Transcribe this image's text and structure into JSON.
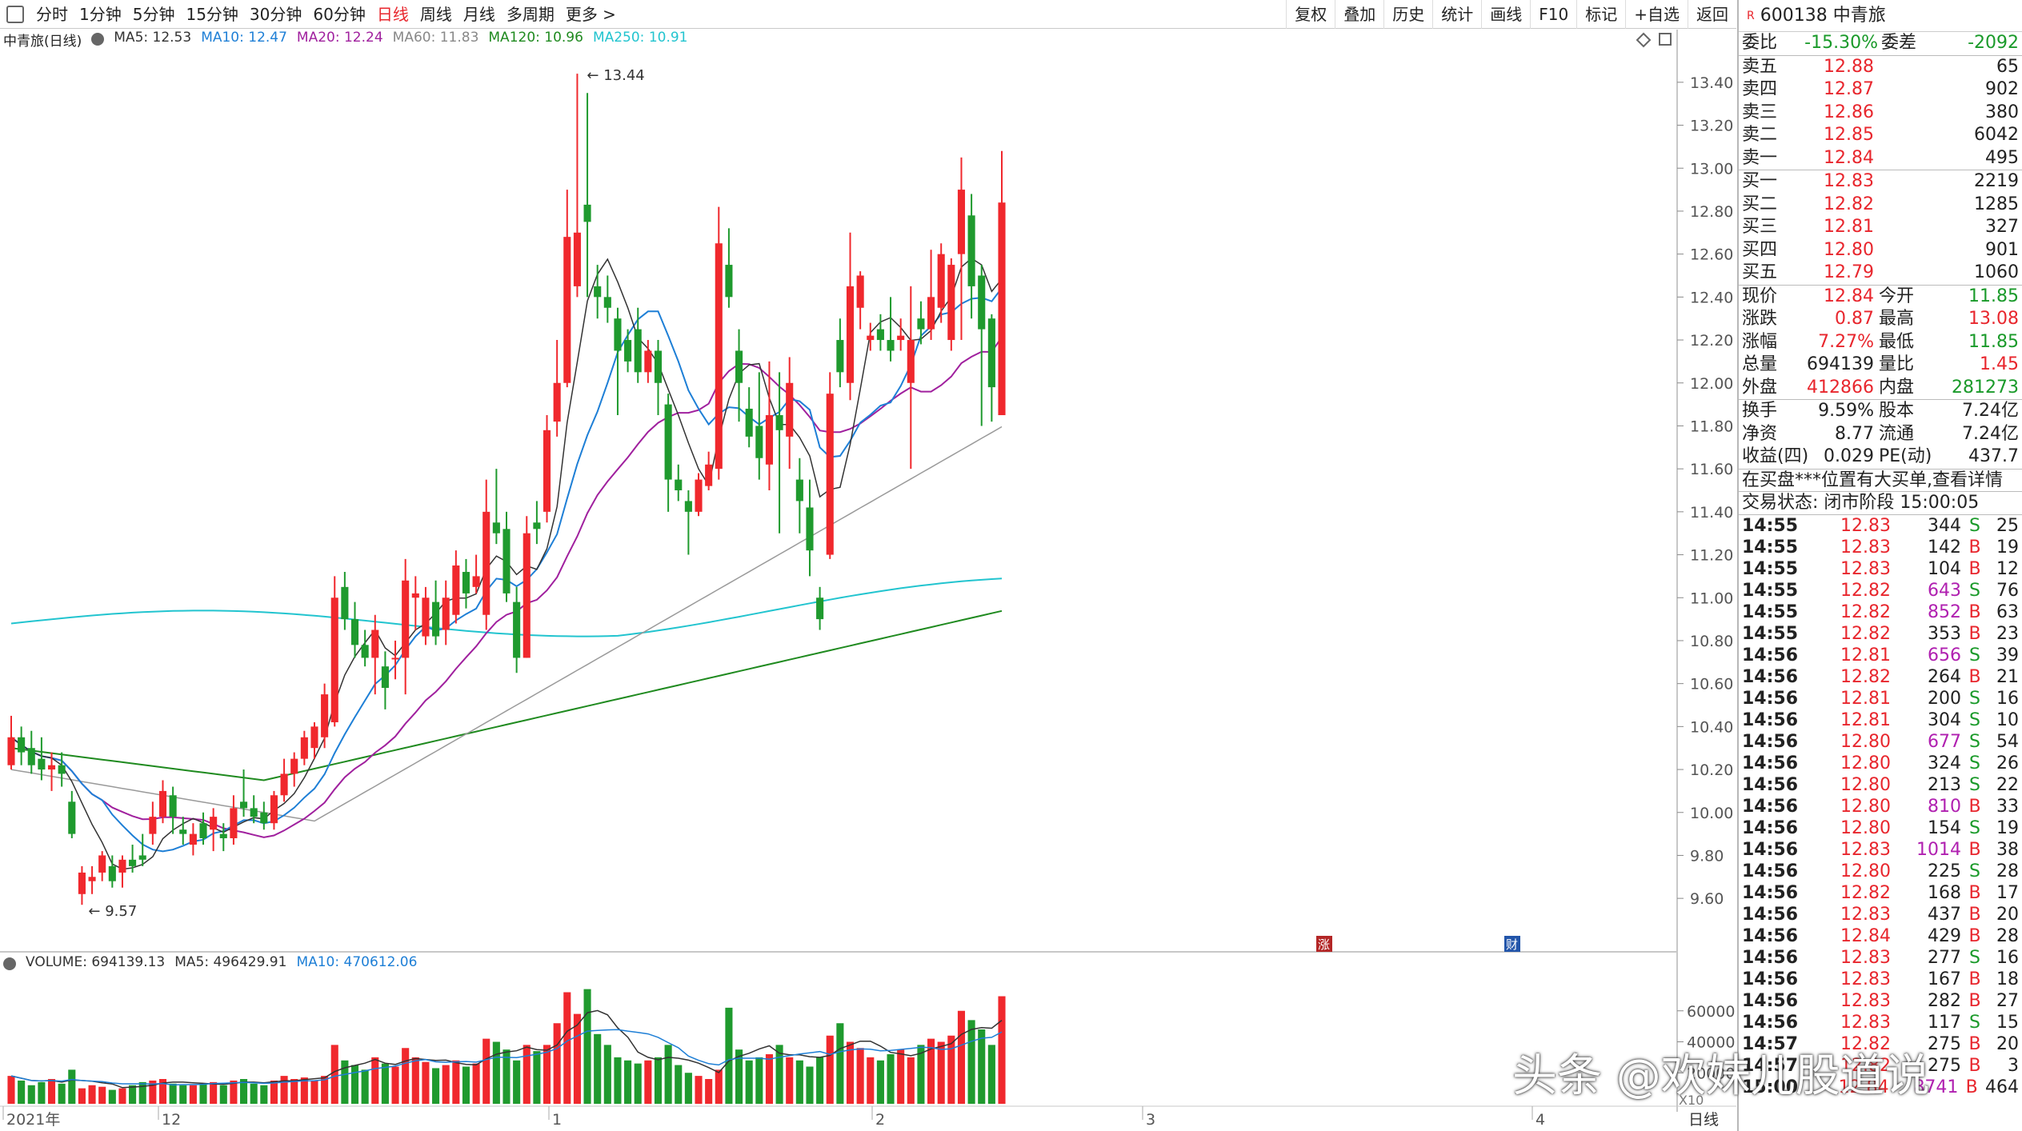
{
  "toolbar": {
    "periods": [
      "分时",
      "1分钟",
      "5分钟",
      "15分钟",
      "30分钟",
      "60分钟",
      "日线",
      "周线",
      "月线",
      "多周期",
      "更多 >"
    ],
    "active": "日线",
    "right": [
      "复权",
      "叠加",
      "历史",
      "统计",
      "画线",
      "F10",
      "标记",
      "+自选",
      "返回"
    ]
  },
  "chart": {
    "title": "中青旅(日线)",
    "ma_legend": [
      {
        "text": "MA5: 12.53",
        "color": "#333333"
      },
      {
        "text": "MA10: 12.47",
        "color": "#1e7fd6"
      },
      {
        "text": "MA20: 12.24",
        "color": "#a0209e"
      },
      {
        "text": "MA60: 11.83",
        "color": "#888888"
      },
      {
        "text": "MA120: 10.96",
        "color": "#1f8a1f"
      },
      {
        "text": "MA250: 10.91",
        "color": "#22c4cf"
      }
    ],
    "high_label": "13.44",
    "low_label": "9.57",
    "y_ticks": [
      "13.40",
      "13.20",
      "13.00",
      "12.80",
      "12.60",
      "12.40",
      "12.20",
      "12.00",
      "11.80",
      "11.60",
      "11.40",
      "11.20",
      "11.00",
      "10.80",
      "10.60",
      "10.40",
      "10.20",
      "10.00",
      "9.80",
      "9.60"
    ],
    "markers": [
      "涨",
      "财"
    ],
    "volume_legend": [
      {
        "text": "VOLUME: 694139.13",
        "color": "#333333"
      },
      {
        "text": "MA5: 496429.91",
        "color": "#333333"
      },
      {
        "text": "MA10: 470612.06",
        "color": "#1e7fd6"
      }
    ],
    "vol_ticks": [
      "60000",
      "40000",
      "20000"
    ],
    "vol_unit": "X10",
    "x_labels": [
      "2021年",
      "12",
      "1",
      "2",
      "3",
      "4"
    ],
    "period_label": "日线"
  },
  "chart_data": {
    "type": "candlestick",
    "ylim": [
      9.5,
      13.5
    ],
    "candles": [
      [
        10.22,
        10.35,
        10.45,
        10.2
      ],
      [
        10.35,
        10.28,
        10.4,
        10.22
      ],
      [
        10.3,
        10.22,
        10.38,
        10.18
      ],
      [
        10.25,
        10.2,
        10.35,
        10.15
      ],
      [
        10.2,
        10.22,
        10.28,
        10.1
      ],
      [
        10.22,
        10.18,
        10.28,
        10.12
      ],
      [
        10.05,
        9.9,
        10.1,
        9.88
      ],
      [
        9.62,
        9.72,
        9.75,
        9.57
      ],
      [
        9.68,
        9.7,
        9.75,
        9.62
      ],
      [
        9.72,
        9.8,
        9.82,
        9.68
      ],
      [
        9.75,
        9.68,
        9.8,
        9.65
      ],
      [
        9.72,
        9.78,
        9.8,
        9.65
      ],
      [
        9.78,
        9.75,
        9.85,
        9.72
      ],
      [
        9.8,
        9.78,
        9.9,
        9.75
      ],
      [
        9.9,
        9.98,
        10.05,
        9.85
      ],
      [
        9.98,
        10.1,
        10.15,
        9.95
      ],
      [
        10.08,
        9.98,
        10.12,
        9.9
      ],
      [
        9.92,
        9.9,
        9.98,
        9.85
      ],
      [
        9.85,
        9.9,
        9.95,
        9.8
      ],
      [
        9.95,
        9.88,
        10.0,
        9.85
      ],
      [
        9.92,
        9.98,
        10.02,
        9.82
      ],
      [
        9.9,
        9.88,
        9.95,
        9.82
      ],
      [
        9.88,
        10.02,
        10.08,
        9.85
      ],
      [
        10.05,
        10.02,
        10.2,
        9.98
      ],
      [
        10.02,
        9.98,
        10.08,
        9.95
      ],
      [
        10.0,
        9.95,
        10.05,
        9.92
      ],
      [
        9.95,
        10.08,
        10.1,
        9.92
      ],
      [
        10.08,
        10.18,
        10.25,
        10.05
      ],
      [
        10.18,
        10.25,
        10.28,
        10.12
      ],
      [
        10.25,
        10.35,
        10.38,
        10.22
      ],
      [
        10.3,
        10.4,
        10.42,
        10.25
      ],
      [
        10.35,
        10.55,
        10.6,
        10.3
      ],
      [
        10.42,
        11.0,
        11.1,
        10.4
      ],
      [
        11.05,
        10.9,
        11.12,
        10.85
      ],
      [
        10.9,
        10.78,
        10.98,
        10.72
      ],
      [
        10.78,
        10.72,
        10.85,
        10.68
      ],
      [
        10.72,
        10.85,
        10.92,
        10.55
      ],
      [
        10.68,
        10.58,
        10.75,
        10.48
      ],
      [
        10.72,
        10.72,
        10.8,
        10.62
      ],
      [
        10.72,
        11.08,
        11.18,
        10.55
      ],
      [
        11.0,
        11.02,
        11.1,
        10.85
      ],
      [
        10.82,
        11.0,
        11.05,
        10.78
      ],
      [
        10.98,
        10.82,
        11.08,
        10.78
      ],
      [
        10.85,
        11.0,
        11.08,
        10.78
      ],
      [
        10.92,
        11.15,
        11.22,
        10.88
      ],
      [
        11.12,
        11.02,
        11.18,
        10.95
      ],
      [
        11.05,
        11.1,
        11.2,
        11.02
      ],
      [
        10.92,
        11.4,
        11.55,
        10.85
      ],
      [
        11.35,
        11.3,
        11.6,
        11.25
      ],
      [
        11.32,
        11.02,
        11.4,
        10.98
      ],
      [
        10.98,
        10.72,
        11.05,
        10.65
      ],
      [
        10.72,
        11.3,
        11.38,
        10.72
      ],
      [
        11.35,
        11.32,
        11.45,
        11.25
      ],
      [
        11.4,
        11.78,
        11.85,
        11.35
      ],
      [
        11.82,
        12.0,
        12.2,
        11.75
      ],
      [
        12.0,
        12.68,
        12.9,
        11.98
      ],
      [
        12.45,
        12.7,
        13.44,
        12.4
      ],
      [
        12.83,
        12.75,
        13.35,
        12.4
      ],
      [
        12.45,
        12.4,
        12.55,
        12.3
      ],
      [
        12.4,
        12.35,
        12.5,
        12.28
      ],
      [
        12.3,
        12.15,
        12.35,
        11.85
      ],
      [
        12.2,
        12.1,
        12.25,
        12.05
      ],
      [
        12.25,
        12.05,
        12.35,
        12.0
      ],
      [
        12.05,
        12.15,
        12.2,
        12.0
      ],
      [
        12.15,
        12.0,
        12.2,
        11.85
      ],
      [
        11.9,
        11.55,
        11.95,
        11.4
      ],
      [
        11.55,
        11.5,
        11.62,
        11.45
      ],
      [
        11.45,
        11.4,
        11.5,
        11.2
      ],
      [
        11.4,
        11.55,
        11.58,
        11.38
      ],
      [
        11.52,
        11.62,
        11.68,
        11.5
      ],
      [
        11.6,
        12.65,
        12.82,
        11.55
      ],
      [
        12.55,
        12.4,
        12.72,
        12.35
      ],
      [
        12.15,
        12.0,
        12.25,
        11.82
      ],
      [
        11.88,
        11.75,
        11.98,
        11.7
      ],
      [
        11.8,
        11.65,
        12.05,
        11.55
      ],
      [
        11.62,
        11.85,
        12.1,
        11.5
      ],
      [
        11.85,
        11.78,
        12.05,
        11.3
      ],
      [
        11.75,
        12.0,
        12.12,
        11.6
      ],
      [
        11.55,
        11.45,
        11.65,
        11.3
      ],
      [
        11.42,
        11.22,
        11.55,
        11.1
      ],
      [
        11.0,
        10.9,
        11.05,
        10.85
      ],
      [
        11.2,
        11.95,
        12.05,
        11.18
      ],
      [
        12.2,
        12.05,
        12.3,
        11.98
      ],
      [
        12.0,
        12.45,
        12.7,
        11.92
      ],
      [
        12.35,
        12.5,
        12.52,
        12.25
      ],
      [
        12.2,
        12.22,
        12.28,
        12.15
      ],
      [
        12.25,
        12.2,
        12.32,
        12.15
      ],
      [
        12.2,
        12.15,
        12.4,
        12.1
      ],
      [
        12.2,
        12.22,
        12.3,
        12.15
      ],
      [
        12.0,
        12.2,
        12.45,
        11.6
      ],
      [
        12.3,
        12.25,
        12.38,
        12.18
      ],
      [
        12.25,
        12.4,
        12.62,
        12.2
      ],
      [
        12.35,
        12.6,
        12.65,
        12.28
      ],
      [
        12.2,
        12.55,
        12.58,
        12.15
      ],
      [
        12.6,
        12.9,
        13.05,
        12.2
      ],
      [
        12.78,
        12.45,
        12.88,
        12.3
      ],
      [
        12.5,
        12.25,
        12.55,
        11.8
      ],
      [
        12.3,
        11.98,
        12.32,
        11.82
      ],
      [
        11.85,
        12.84,
        13.08,
        11.85
      ]
    ],
    "volume": [
      18000,
      15000,
      12000,
      14000,
      16000,
      13000,
      22000,
      10000,
      12000,
      11000,
      9000,
      10000,
      12000,
      14000,
      15000,
      16000,
      13000,
      12000,
      12000,
      13000,
      14000,
      12000,
      15000,
      16000,
      13000,
      12000,
      15000,
      18000,
      16000,
      17000,
      15000,
      18000,
      38000,
      28000,
      25000,
      22000,
      30000,
      26000,
      24000,
      36000,
      30000,
      27000,
      23000,
      25000,
      28000,
      24000,
      26000,
      42000,
      40000,
      35000,
      28000,
      38000,
      34000,
      38000,
      52000,
      72000,
      58000,
      74000,
      45000,
      38000,
      30000,
      28000,
      26000,
      28000,
      30000,
      38000,
      25000,
      20000,
      18000,
      16000,
      22000,
      62000,
      35000,
      28000,
      30000,
      32000,
      38000,
      30000,
      28000,
      24000,
      30000,
      44000,
      52000,
      40000,
      36000,
      30000,
      28000,
      32000,
      35000,
      30000,
      38000,
      42000,
      40000,
      44000,
      60000,
      54000,
      48000,
      38000,
      69413
    ]
  },
  "panel": {
    "code": "600138",
    "name": "中青旅",
    "weibi_label": "委比",
    "weibi_value": "-15.30%",
    "weicha_label": "委差",
    "weicha_value": "-2092",
    "asks": [
      [
        "卖五",
        "12.88",
        "65"
      ],
      [
        "卖四",
        "12.87",
        "902"
      ],
      [
        "卖三",
        "12.86",
        "380"
      ],
      [
        "卖二",
        "12.85",
        "6042"
      ],
      [
        "卖一",
        "12.84",
        "495"
      ]
    ],
    "bids": [
      [
        "买一",
        "12.83",
        "2219"
      ],
      [
        "买二",
        "12.82",
        "1285"
      ],
      [
        "买三",
        "12.81",
        "327"
      ],
      [
        "买四",
        "12.80",
        "901"
      ],
      [
        "买五",
        "12.79",
        "1060"
      ]
    ],
    "quote": [
      [
        "现价",
        "12.84",
        "今开",
        "11.85"
      ],
      [
        "涨跌",
        "0.87",
        "最高",
        "13.08"
      ],
      [
        "涨幅",
        "7.27%",
        "最低",
        "11.85"
      ],
      [
        "总量",
        "694139",
        "量比",
        "1.45"
      ],
      [
        "外盘",
        "412866",
        "内盘",
        "281273"
      ]
    ],
    "fin": [
      [
        "换手",
        "9.59%",
        "股本",
        "7.24亿"
      ],
      [
        "净资",
        "8.77",
        "流通",
        "7.24亿"
      ],
      [
        "收益(四)",
        "0.029",
        "PE(动)",
        "437.7"
      ]
    ],
    "notice": "在买盘***位置有大买单,查看详情",
    "status": "交易状态: 闭市阶段 15:00:05",
    "ticks": [
      [
        "14:55",
        "12.83",
        "344",
        "S",
        "25"
      ],
      [
        "14:55",
        "12.83",
        "142",
        "B",
        "19"
      ],
      [
        "14:55",
        "12.83",
        "104",
        "B",
        "12"
      ],
      [
        "14:55",
        "12.82",
        "643",
        "S",
        "76"
      ],
      [
        "14:55",
        "12.82",
        "852",
        "B",
        "63"
      ],
      [
        "14:55",
        "12.82",
        "353",
        "B",
        "23"
      ],
      [
        "14:56",
        "12.81",
        "656",
        "S",
        "39"
      ],
      [
        "14:56",
        "12.82",
        "264",
        "B",
        "21"
      ],
      [
        "14:56",
        "12.81",
        "200",
        "S",
        "16"
      ],
      [
        "14:56",
        "12.81",
        "304",
        "S",
        "10"
      ],
      [
        "14:56",
        "12.80",
        "677",
        "S",
        "54"
      ],
      [
        "14:56",
        "12.80",
        "324",
        "S",
        "26"
      ],
      [
        "14:56",
        "12.80",
        "213",
        "S",
        "22"
      ],
      [
        "14:56",
        "12.80",
        "810",
        "B",
        "33"
      ],
      [
        "14:56",
        "12.80",
        "154",
        "S",
        "19"
      ],
      [
        "14:56",
        "12.83",
        "1014",
        "B",
        "38"
      ],
      [
        "14:56",
        "12.80",
        "225",
        "S",
        "28"
      ],
      [
        "14:56",
        "12.82",
        "168",
        "B",
        "17"
      ],
      [
        "14:56",
        "12.83",
        "437",
        "B",
        "20"
      ],
      [
        "14:56",
        "12.84",
        "429",
        "B",
        "28"
      ],
      [
        "14:56",
        "12.83",
        "277",
        "S",
        "16"
      ],
      [
        "14:56",
        "12.83",
        "167",
        "B",
        "18"
      ],
      [
        "14:56",
        "12.83",
        "282",
        "B",
        "27"
      ],
      [
        "14:56",
        "12.83",
        "117",
        "S",
        "15"
      ],
      [
        "14:57",
        "12.82",
        "275",
        "B",
        "20"
      ],
      [
        "14:57",
        "12.82",
        "275",
        "B",
        "3"
      ],
      [
        "15:00",
        "12.84",
        "8741",
        "B",
        "464"
      ]
    ]
  },
  "watermark": "头条 @欢妹儿股道说",
  "colors": {
    "up": "#f0282d",
    "down": "#1f9a2e",
    "price_red": "#e8262d",
    "price_green": "#1a9a2a",
    "purple": "#b020b0"
  }
}
